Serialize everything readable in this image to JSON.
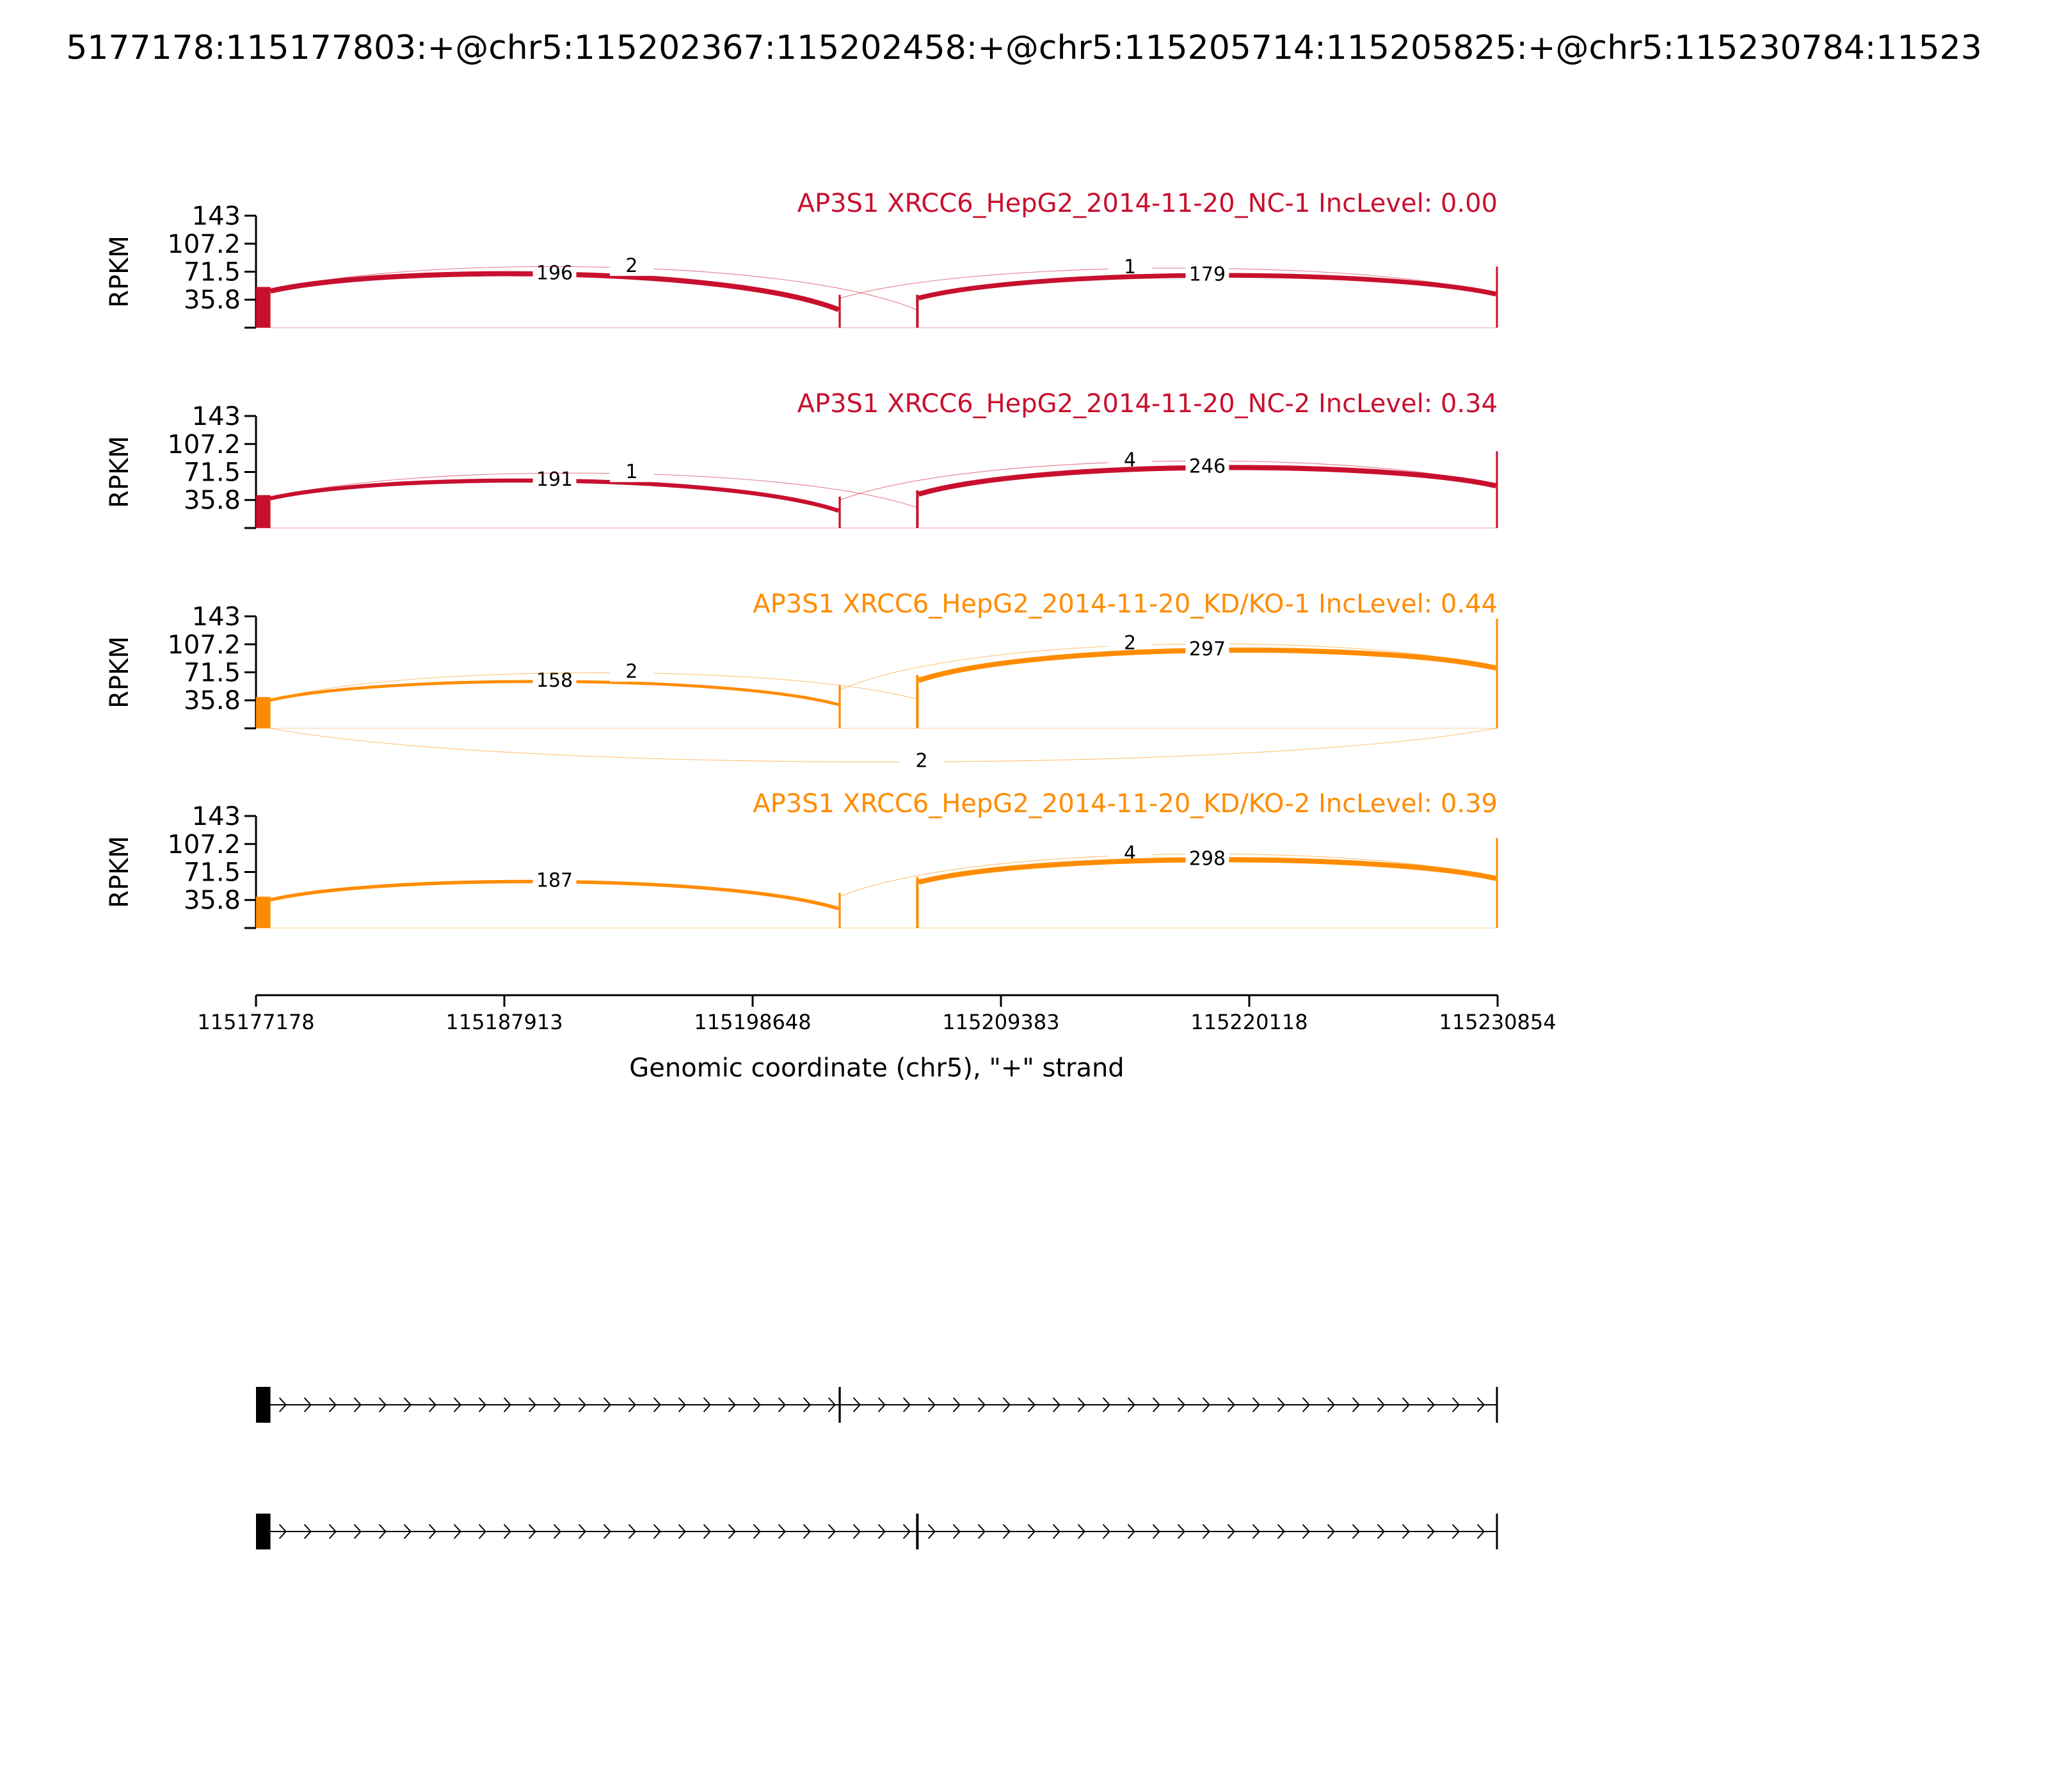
{
  "figure": {
    "title": "5177178:115177803:+@chr5:115202367:115202458:+@chr5:115205714:115205825:+@chr5:115230784:11523",
    "ylabel": "RPKM",
    "xlabel": "Genomic coordinate (chr5), \"+\" strand",
    "x_ticks": [
      115177178,
      115187913,
      115198648,
      115209383,
      115220118,
      115230854
    ],
    "x_tick_labels": [
      "115177178",
      "115187913",
      "115198648",
      "115209383",
      "115220118",
      "115230854"
    ],
    "xlim": [
      115177178,
      115230854
    ],
    "y_ticks": [
      35.8,
      71.5,
      107.2,
      143
    ],
    "y_tick_labels": [
      "35.8",
      "71.5",
      "107.2",
      "143"
    ],
    "ylim": [
      0,
      143
    ],
    "colors": {
      "nc": "#c8102e",
      "kd": "#ff8c00",
      "axis": "#000000"
    }
  },
  "chart_data": [
    {
      "type": "area",
      "title": "AP3S1 XRCC6_HepG2_2014-11-20_NC-1 IncLevel: 0.00",
      "color": "#c8102e",
      "ylabel": "RPKM",
      "ylim": [
        0,
        143
      ],
      "exons": [
        {
          "start": 115177178,
          "end": 115177803,
          "rpkm": 52
        },
        {
          "start": 115202367,
          "end": 115202458,
          "rpkm": 42
        },
        {
          "start": 115205714,
          "end": 115205825,
          "rpkm": 42
        },
        {
          "start": 115230784,
          "end": 115230854,
          "rpkm": 78
        }
      ],
      "junctions": [
        {
          "from": 115177803,
          "to": 115202367,
          "count": 196,
          "label": "196",
          "above": true
        },
        {
          "from": 115177803,
          "to": 115205714,
          "count": 2,
          "label": "2",
          "above": true
        },
        {
          "from": 115202458,
          "to": 115230784,
          "count": 1,
          "label": "1",
          "above": true
        },
        {
          "from": 115205825,
          "to": 115230784,
          "count": 179,
          "label": "179",
          "above": true
        }
      ]
    },
    {
      "type": "area",
      "title": "AP3S1 XRCC6_HepG2_2014-11-20_NC-2 IncLevel: 0.34",
      "color": "#c8102e",
      "ylabel": "RPKM",
      "ylim": [
        0,
        143
      ],
      "exons": [
        {
          "start": 115177178,
          "end": 115177803,
          "rpkm": 42
        },
        {
          "start": 115202367,
          "end": 115202458,
          "rpkm": 40
        },
        {
          "start": 115205714,
          "end": 115205825,
          "rpkm": 48
        },
        {
          "start": 115230784,
          "end": 115230854,
          "rpkm": 98
        }
      ],
      "junctions": [
        {
          "from": 115177803,
          "to": 115202367,
          "count": 191,
          "label": "191",
          "above": true
        },
        {
          "from": 115177803,
          "to": 115205714,
          "count": 1,
          "label": "1",
          "above": true
        },
        {
          "from": 115202458,
          "to": 115230784,
          "count": 4,
          "label": "4",
          "above": true
        },
        {
          "from": 115205825,
          "to": 115230784,
          "count": 246,
          "label": "246",
          "above": true
        }
      ]
    },
    {
      "type": "area",
      "title": "AP3S1 XRCC6_HepG2_2014-11-20_KD/KO-1 IncLevel: 0.44",
      "color": "#ff8c00",
      "ylabel": "RPKM",
      "ylim": [
        0,
        143
      ],
      "exons": [
        {
          "start": 115177178,
          "end": 115177803,
          "rpkm": 40
        },
        {
          "start": 115202367,
          "end": 115202458,
          "rpkm": 55
        },
        {
          "start": 115205714,
          "end": 115205825,
          "rpkm": 68
        },
        {
          "start": 115230784,
          "end": 115230854,
          "rpkm": 140
        }
      ],
      "junctions": [
        {
          "from": 115177803,
          "to": 115202367,
          "count": 158,
          "label": "158",
          "above": true
        },
        {
          "from": 115177803,
          "to": 115205714,
          "count": 2,
          "label": "2",
          "above": true
        },
        {
          "from": 115202458,
          "to": 115230784,
          "count": 2,
          "label": "2",
          "above": true
        },
        {
          "from": 115205825,
          "to": 115230784,
          "count": 297,
          "label": "297",
          "above": true
        },
        {
          "from": 115177803,
          "to": 115230784,
          "count": 2,
          "label": "2",
          "above": false
        }
      ]
    },
    {
      "type": "area",
      "title": "AP3S1 XRCC6_HepG2_2014-11-20_KD/KO-2 IncLevel: 0.39",
      "color": "#ff8c00",
      "ylabel": "RPKM",
      "ylim": [
        0,
        143
      ],
      "exons": [
        {
          "start": 115177178,
          "end": 115177803,
          "rpkm": 40
        },
        {
          "start": 115202367,
          "end": 115202458,
          "rpkm": 45
        },
        {
          "start": 115205714,
          "end": 115205825,
          "rpkm": 65
        },
        {
          "start": 115230784,
          "end": 115230854,
          "rpkm": 115
        }
      ],
      "junctions": [
        {
          "from": 115177803,
          "to": 115202367,
          "count": 187,
          "label": "187",
          "above": true
        },
        {
          "from": 115202458,
          "to": 115230784,
          "count": 4,
          "label": "4",
          "above": true
        },
        {
          "from": 115205825,
          "to": 115230784,
          "count": 298,
          "label": "298",
          "above": true
        }
      ]
    }
  ],
  "isoforms": [
    {
      "exons": [
        [
          115177178,
          115177803
        ],
        [
          115202367,
          115202458
        ],
        [
          115230784,
          115230854
        ]
      ]
    },
    {
      "exons": [
        [
          115177178,
          115177803
        ],
        [
          115205714,
          115205825
        ],
        [
          115230784,
          115230854
        ]
      ]
    }
  ]
}
